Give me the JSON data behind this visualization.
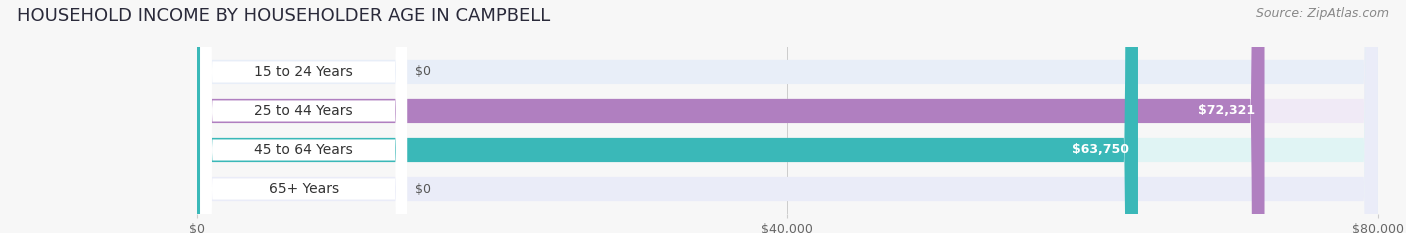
{
  "title": "HOUSEHOLD INCOME BY HOUSEHOLDER AGE IN CAMPBELL",
  "source": "Source: ZipAtlas.com",
  "categories": [
    "15 to 24 Years",
    "25 to 44 Years",
    "45 to 64 Years",
    "65+ Years"
  ],
  "values": [
    0,
    72321,
    63750,
    0
  ],
  "bar_colors": [
    "#a8c4e0",
    "#b07fc0",
    "#3ab8b8",
    "#aab4e0"
  ],
  "bg_colors": [
    "#e8eef8",
    "#f0eaf6",
    "#e0f4f4",
    "#eaecf8"
  ],
  "label_bg_color": "#ffffff",
  "xlim": [
    0,
    80000
  ],
  "xtick_labels": [
    "$0",
    "$40,000",
    "$80,000"
  ],
  "title_fontsize": 13,
  "source_fontsize": 9,
  "label_fontsize": 10,
  "value_fontsize": 9,
  "bar_height": 0.62,
  "figsize": [
    14.06,
    2.33
  ],
  "dpi": 100
}
